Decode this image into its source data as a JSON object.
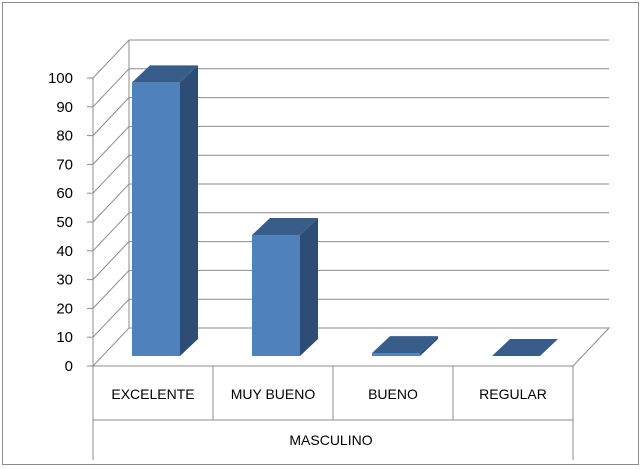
{
  "chart_data": {
    "type": "bar",
    "categories": [
      "EXCELENTE",
      "MUY BUENO",
      "BUENO",
      "REGULAR"
    ],
    "group_label": "MASCULINO",
    "values": [
      95,
      42,
      1,
      0
    ],
    "ylim": [
      0,
      100
    ],
    "yticks": [
      "0",
      "10",
      "20",
      "30",
      "40",
      "50",
      "60",
      "70",
      "80",
      "90",
      "100"
    ],
    "title": "",
    "xlabel": "",
    "ylabel": "",
    "grid": true,
    "three_d": true,
    "colors": {
      "bar_front": "#4f81bd",
      "bar_side": "#2e4d74",
      "bar_top": "#385d8a",
      "grid": "#8c8c8c"
    }
  }
}
